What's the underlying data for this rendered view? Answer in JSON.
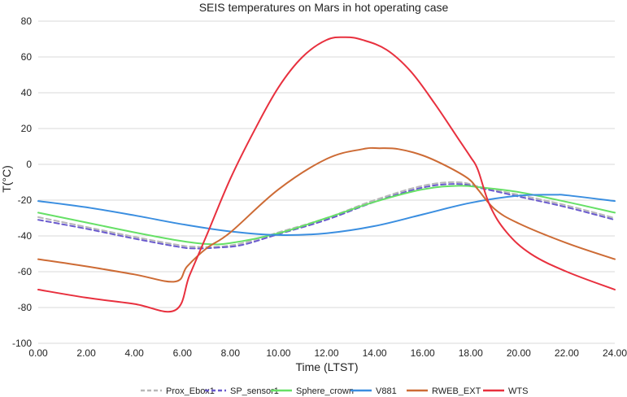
{
  "chart_data": {
    "type": "line",
    "title": "SEIS temperatures on Mars in hot operating case",
    "xlabel": "Time (LTST)",
    "ylabel": "T(°C)",
    "xlim": [
      0,
      24
    ],
    "ylim": [
      -100,
      80
    ],
    "xticks": [
      "0.00",
      "2.00",
      "4.00",
      "6.00",
      "8.00",
      "10.00",
      "12.00",
      "14.00",
      "16.00",
      "18.00",
      "20.00",
      "22.00",
      "24.00"
    ],
    "yticks": [
      "-100",
      "-80",
      "-60",
      "-40",
      "-20",
      "0",
      "20",
      "40",
      "60",
      "80"
    ],
    "grid": "horizontal",
    "legend_position": "bottom",
    "series": [
      {
        "name": "Prox_Ebox1",
        "color": "#b8b8b8",
        "dash": "dashed",
        "x": [
          0,
          2,
          4,
          5.8,
          6.5,
          7.5,
          8.5,
          10,
          12,
          14,
          16,
          17.5,
          18.5,
          20,
          22,
          24
        ],
        "y": [
          -29.5,
          -35,
          -40.5,
          -45,
          -46,
          -46,
          -44,
          -38,
          -30,
          -20,
          -12,
          -10,
          -13,
          -17,
          -23,
          -30
        ]
      },
      {
        "name": "SP_sensor1",
        "color": "#6a5acd",
        "dash": "dashed",
        "x": [
          0,
          2,
          4,
          5.8,
          6.5,
          7.5,
          8.5,
          10,
          12,
          14,
          16,
          17.5,
          18.5,
          20,
          22,
          24
        ],
        "y": [
          -31,
          -36,
          -41.5,
          -46,
          -47,
          -46.5,
          -45,
          -39,
          -31,
          -21,
          -13,
          -11,
          -13.5,
          -18,
          -24,
          -31
        ]
      },
      {
        "name": "Sphere_crown",
        "color": "#66e066",
        "dash": "solid",
        "x": [
          0,
          2,
          4,
          5.8,
          7,
          8,
          10,
          12,
          14,
          16,
          17.5,
          18.5,
          20,
          22,
          24
        ],
        "y": [
          -27,
          -32.5,
          -38,
          -42.5,
          -44.5,
          -44,
          -38.5,
          -30,
          -21,
          -14,
          -12,
          -13,
          -15.5,
          -21,
          -27
        ]
      },
      {
        "name": "V881",
        "color": "#3a8ee0",
        "dash": "solid",
        "x": [
          0,
          2,
          4,
          6,
          8,
          10,
          12,
          14,
          16,
          18,
          20,
          21.5,
          22,
          24
        ],
        "y": [
          -20.5,
          -24,
          -28.5,
          -33.5,
          -37.5,
          -39.5,
          -38.5,
          -34.5,
          -28,
          -21.5,
          -17.5,
          -17,
          -17.3,
          -20.5
        ]
      },
      {
        "name": "RWEB_EXT",
        "color": "#cd6b35",
        "dash": "solid",
        "x": [
          0,
          2,
          4,
          5.7,
          6.2,
          7,
          8,
          10,
          12,
          13.5,
          14.2,
          15,
          16,
          17,
          17.9,
          18.3,
          19,
          20,
          22,
          24
        ],
        "y": [
          -53,
          -57,
          -61.5,
          -65.5,
          -57,
          -47,
          -38,
          -14,
          3,
          8.5,
          9,
          8.5,
          5,
          -1,
          -8,
          -14,
          -25,
          -33,
          -44,
          -53
        ]
      },
      {
        "name": "WTS",
        "color": "#e8303e",
        "dash": "solid",
        "x": [
          0,
          2,
          4,
          5.7,
          6.3,
          7,
          8,
          9,
          10,
          11,
          12,
          12.8,
          13.5,
          14.5,
          15.5,
          16.5,
          17.5,
          18,
          18.3,
          18.8,
          19.5,
          20.5,
          22,
          24
        ],
        "y": [
          -70,
          -74.5,
          -78,
          -81.5,
          -62,
          -40,
          -8,
          19,
          43,
          60,
          69.5,
          71,
          69.5,
          64,
          52,
          34,
          14,
          4,
          -3,
          -23,
          -38,
          -50,
          -60,
          -70
        ]
      }
    ]
  }
}
